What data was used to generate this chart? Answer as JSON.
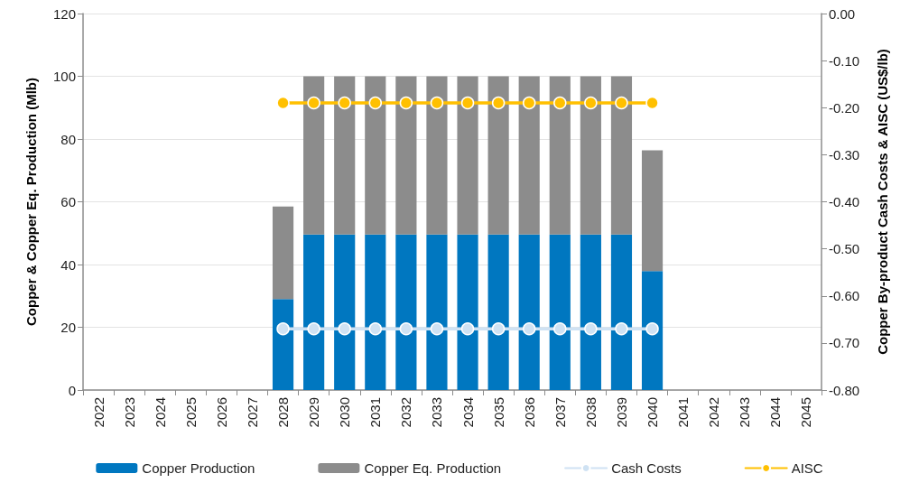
{
  "chart_data": {
    "type": "bar",
    "stacked": true,
    "ylabel": "Copper & Copper Eq. Production (Mlb)",
    "y2label": "Copper By-product Cash Costs & AISC (US$/lb)",
    "categories": [
      "2022",
      "2023",
      "2024",
      "2025",
      "2026",
      "2027",
      "2028",
      "2029",
      "2030",
      "2031",
      "2032",
      "2033",
      "2034",
      "2035",
      "2036",
      "2037",
      "2038",
      "2039",
      "2040",
      "2041",
      "2042",
      "2043",
      "2044",
      "2045"
    ],
    "ylim": [
      0,
      120
    ],
    "yticks": [
      0,
      20,
      40,
      60,
      80,
      100,
      120
    ],
    "y2lim": [
      -0.8,
      0
    ],
    "y2ticks": [
      {
        "value": -0.8,
        "label": "-0.80"
      },
      {
        "value": -0.7,
        "label": "-0.70"
      },
      {
        "value": -0.6,
        "label": "-0.60"
      },
      {
        "value": -0.5,
        "label": "-0.50"
      },
      {
        "value": -0.4,
        "label": "-0.40"
      },
      {
        "value": -0.3,
        "label": "-0.30"
      },
      {
        "value": -0.2,
        "label": "-0.20"
      },
      {
        "value": -0.1,
        "label": "-0.10"
      },
      {
        "value": 0,
        "label": "0.00"
      }
    ],
    "grid": "y",
    "legend": "bottom",
    "series": [
      {
        "name": "Copper Production",
        "color": "#0077c0",
        "values": [
          null,
          null,
          null,
          null,
          null,
          null,
          29.0,
          49.6,
          49.6,
          49.6,
          49.6,
          49.6,
          49.6,
          49.6,
          49.6,
          49.6,
          49.6,
          49.6,
          37.9,
          null,
          null,
          null,
          null,
          null
        ]
      },
      {
        "name": "Copper Eq. Production",
        "color": "#8c8c8c",
        "values": [
          null,
          null,
          null,
          null,
          null,
          null,
          29.5,
          50.4,
          50.4,
          50.4,
          50.4,
          50.4,
          50.4,
          50.4,
          50.4,
          50.4,
          50.4,
          50.4,
          38.5,
          null,
          null,
          null,
          null,
          null
        ]
      },
      {
        "name": "Cash Costs",
        "type": "line",
        "axis": "y2",
        "marker": "circle",
        "color": "#cfe2f3",
        "values": [
          null,
          null,
          null,
          null,
          null,
          null,
          -0.67,
          -0.67,
          -0.67,
          -0.67,
          -0.67,
          -0.67,
          -0.67,
          -0.67,
          -0.67,
          -0.67,
          -0.67,
          -0.67,
          -0.67,
          null,
          null,
          null,
          null,
          null
        ]
      },
      {
        "name": "AISC",
        "type": "line",
        "axis": "y2",
        "marker": "circle",
        "color": "#ffc000",
        "values": [
          null,
          null,
          null,
          null,
          null,
          null,
          -0.19,
          -0.19,
          -0.19,
          -0.19,
          -0.19,
          -0.19,
          -0.19,
          -0.19,
          -0.19,
          -0.19,
          -0.19,
          -0.19,
          -0.19,
          null,
          null,
          null,
          null,
          null
        ]
      }
    ]
  }
}
